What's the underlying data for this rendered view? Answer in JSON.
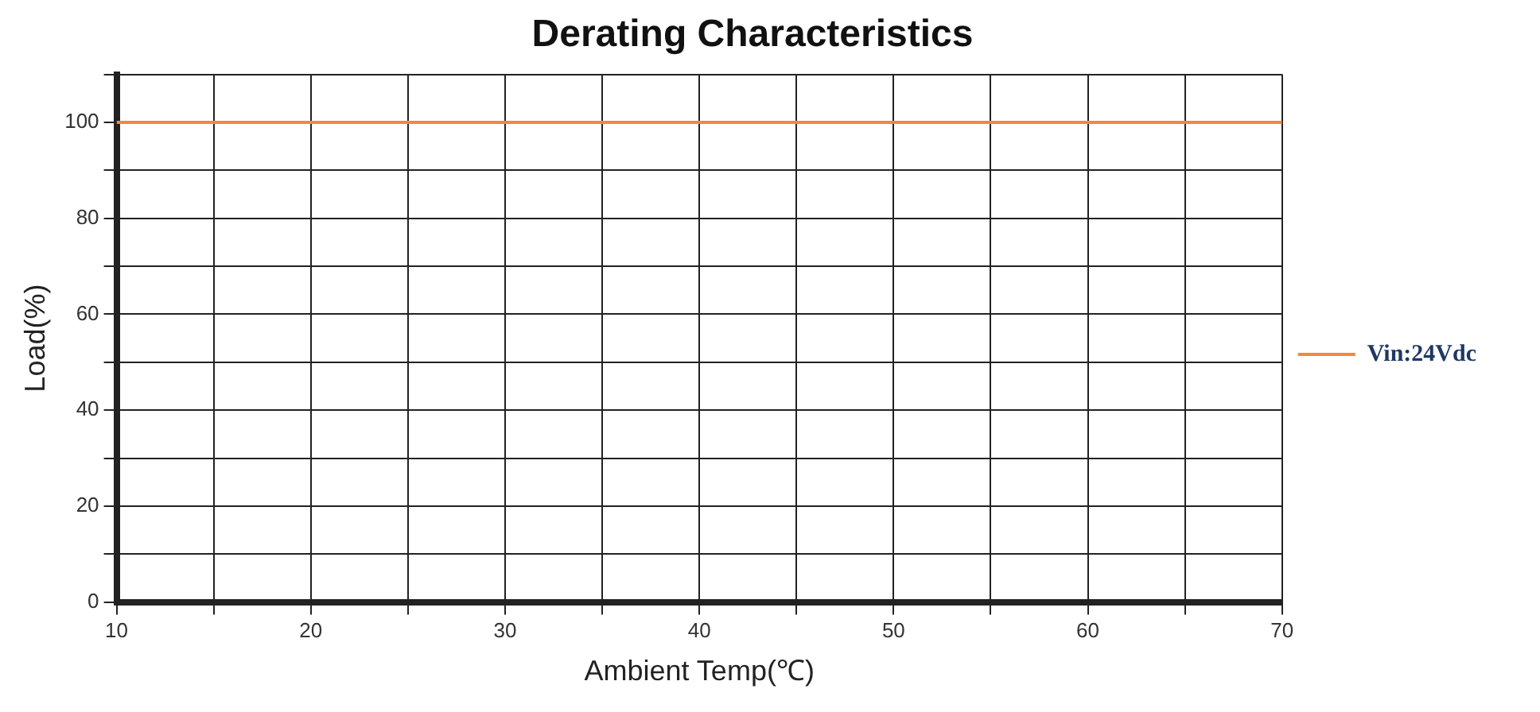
{
  "chart_data": {
    "type": "line",
    "title": "Derating Characteristics",
    "xlabel": "Ambient Temp(℃)",
    "ylabel": "Load(%)",
    "series": [
      {
        "name": "Vin:24Vdc",
        "color": "#f4873c",
        "x": [
          10,
          70
        ],
        "values": [
          100,
          100
        ]
      }
    ],
    "xlim": [
      10,
      70
    ],
    "xticks": [
      10,
      {
        "value": 15,
        "label": null
      },
      20,
      {
        "value": 25,
        "label": null
      },
      30,
      {
        "value": 35,
        "label": null
      },
      40,
      {
        "value": 45,
        "label": null
      },
      50,
      {
        "value": 55,
        "label": null
      },
      60,
      {
        "value": 65,
        "label": null
      },
      70
    ],
    "ylim": [
      0,
      110
    ],
    "yticks": [
      0,
      {
        "value": 10,
        "label": null
      },
      20,
      {
        "value": 30,
        "label": null
      },
      40,
      {
        "value": 50,
        "label": null
      },
      60,
      {
        "value": 70,
        "label": null
      },
      80,
      {
        "value": 90,
        "label": null
      },
      100,
      {
        "value": 110,
        "label": null
      }
    ],
    "grid": true,
    "legend": "right",
    "marker": "none",
    "line_style": "solid"
  }
}
